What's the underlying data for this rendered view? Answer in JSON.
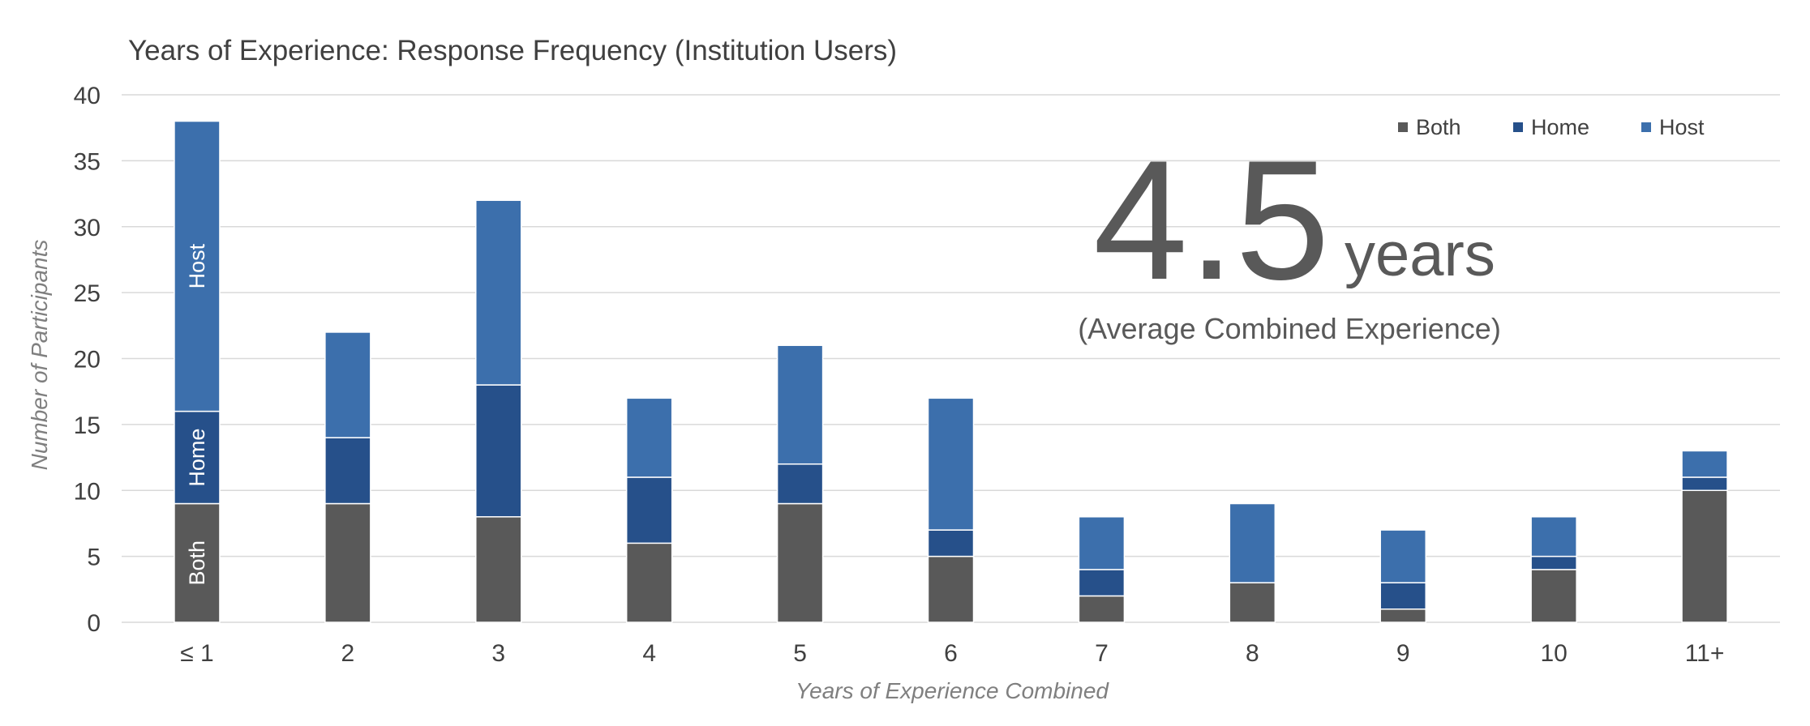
{
  "chart_data": {
    "type": "bar",
    "stacked": true,
    "title": "Years of Experience: Response Frequency (Institution Users)",
    "xlabel": "Years of Experience Combined",
    "ylabel": "Number of Participants",
    "ylim": [
      0,
      40
    ],
    "yticks": [
      "0",
      "5",
      "10",
      "15",
      "20",
      "25",
      "30",
      "35",
      "40"
    ],
    "categories": [
      "≤ 1",
      "2",
      "3",
      "4",
      "5",
      "6",
      "7",
      "8",
      "9",
      "10",
      "11+"
    ],
    "series": [
      {
        "name": "Both",
        "color": "#595959",
        "values": [
          9,
          9,
          8,
          6,
          9,
          5,
          2,
          3,
          1,
          4,
          10
        ]
      },
      {
        "name": "Home",
        "color": "#26508a",
        "values": [
          7,
          5,
          10,
          5,
          3,
          2,
          2,
          0,
          2,
          1,
          1
        ]
      },
      {
        "name": "Host",
        "color": "#3c6fac",
        "values": [
          22,
          8,
          14,
          6,
          9,
          10,
          4,
          6,
          4,
          3,
          2
        ]
      }
    ],
    "segment_labels": {
      "category": "≤ 1",
      "labels": [
        "Both",
        "Home",
        "Host"
      ]
    },
    "grid": true,
    "legend": "top-right",
    "annotation": {
      "value": "4.5",
      "unit": "years",
      "caption": "(Average Combined Experience)"
    }
  }
}
